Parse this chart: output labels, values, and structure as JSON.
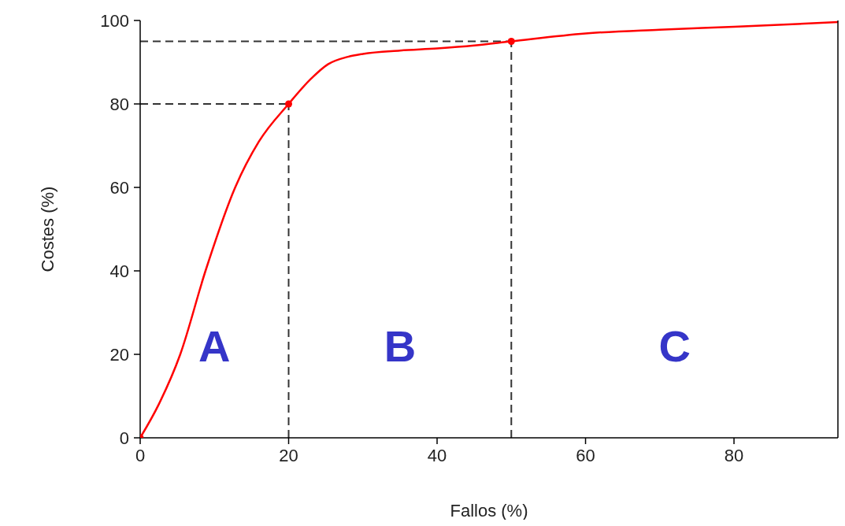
{
  "chart_data": {
    "type": "line",
    "xlabel": "Fallos (%)",
    "ylabel": "Costes (%)",
    "xlim": [
      0,
      94
    ],
    "xticks": [
      0,
      20,
      40,
      60,
      80
    ],
    "ylim": [
      0,
      100
    ],
    "yticks": [
      0,
      20,
      40,
      60,
      80,
      100
    ],
    "grid": false,
    "legend": false,
    "series": [
      {
        "color": "#ff0000",
        "marker": "none",
        "x": [
          0,
          2.5,
          5.4,
          8.8,
          12.8,
          16,
          20,
          23,
          25.3,
          28,
          30,
          35,
          40,
          45,
          50,
          60,
          70,
          80,
          94
        ],
        "values": [
          0,
          8,
          20,
          40,
          60,
          71,
          80,
          86,
          89.5,
          91.3,
          92,
          92.8,
          93.3,
          94,
          95,
          96.9,
          97.8,
          98.5,
          99.6
        ]
      },
      {
        "type": "scatter",
        "color": "#ff0000",
        "marker": "circle",
        "x": [
          0,
          20,
          50
        ],
        "values": [
          0,
          80,
          95
        ]
      }
    ],
    "ref_lines": [
      {
        "axis": "x",
        "value": 20,
        "color": "#333333",
        "line_style": "dashed"
      },
      {
        "axis": "x",
        "value": 50,
        "color": "#333333",
        "line_style": "dashed"
      },
      {
        "axis": "y",
        "value": 80,
        "color": "#333333",
        "line_style": "dashed"
      },
      {
        "axis": "y",
        "value": 95,
        "color": "#333333",
        "line_style": "dashed"
      }
    ],
    "annotations": [
      "A",
      "B",
      "C"
    ]
  }
}
